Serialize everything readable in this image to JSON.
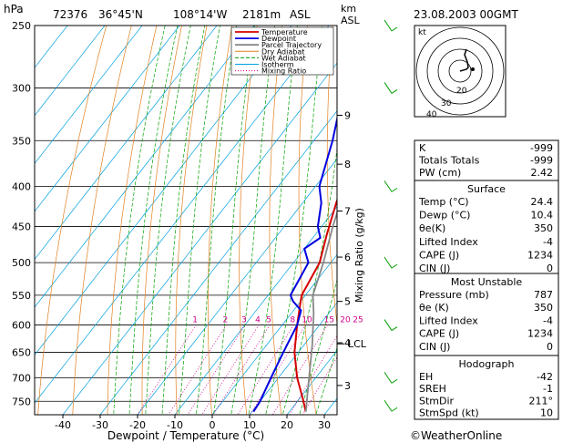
{
  "header": {
    "hpa_unit": "hPa",
    "station": "72376",
    "latitude": "36°45'N",
    "longitude": "108°14'W",
    "elevation": "2181m",
    "elev_ref": "ASL",
    "km_unit": "km",
    "km_unit2": "ASL",
    "datetime": "23.08.2003 00GMT"
  },
  "chart_data": {
    "type": "line",
    "xlabel": "Dewpoint / Temperature (°C)",
    "ylabel": "hPa",
    "y2label": "Mixing Ratio (g/kg)",
    "xlim": [
      -48,
      34
    ],
    "ylim": [
      250,
      780
    ],
    "x_ticks": [
      -40,
      -30,
      -20,
      -10,
      0,
      10,
      20,
      30
    ],
    "pressure_ticks": [
      250,
      300,
      350,
      400,
      450,
      500,
      550,
      600,
      650,
      700,
      750
    ],
    "height_ticks": [
      {
        "km": "3",
        "p": 716
      },
      {
        "km": "4",
        "p": 632
      },
      {
        "km": "5",
        "p": 560
      },
      {
        "km": "6",
        "p": 492
      },
      {
        "km": "7",
        "p": 430
      },
      {
        "km": "8",
        "p": 375
      },
      {
        "km": "9",
        "p": 325
      }
    ],
    "lcl": {
      "label": "LCL",
      "p": 634
    },
    "mixing_ratio_labels": [
      "1",
      "2",
      "3",
      "4",
      "5",
      "8",
      "10",
      "15",
      "20",
      "25"
    ],
    "mixing_ratio_values": [
      1,
      2,
      3,
      4,
      5,
      8,
      10,
      15,
      20,
      25
    ],
    "legend": [
      "Temperature",
      "Dewpoint",
      "Parcel Trajectory",
      "Dry Adiabat",
      "Wet Adiabat",
      "Isotherm",
      "Mixing Ratio"
    ],
    "colors": {
      "temperature": "#d40000",
      "dewpoint": "#0000e0",
      "parcel": "#888888",
      "dry": "#e08020",
      "wet": "#00a000",
      "isotherm": "#00a0e0",
      "mixing": "#d0008c"
    },
    "series": [
      {
        "name": "Temperature",
        "points": [
          [
            24.4,
            773
          ],
          [
            21,
            745
          ],
          [
            15,
            700
          ],
          [
            9,
            650
          ],
          [
            4,
            600
          ],
          [
            0,
            560
          ],
          [
            -1,
            550
          ],
          [
            -3,
            500
          ],
          [
            -7,
            460
          ],
          [
            -11,
            420
          ],
          [
            -13,
            400
          ],
          [
            -19,
            350
          ],
          [
            -27,
            300
          ],
          [
            -36,
            250
          ]
        ]
      },
      {
        "name": "Dewpoint",
        "points": [
          [
            10.4,
            773
          ],
          [
            10,
            750
          ],
          [
            8,
            700
          ],
          [
            6,
            650
          ],
          [
            4,
            600
          ],
          [
            2,
            575
          ],
          [
            -2,
            560
          ],
          [
            -4,
            550
          ],
          [
            -6,
            500
          ],
          [
            -10,
            480
          ],
          [
            -8,
            465
          ],
          [
            -11,
            450
          ],
          [
            -15,
            420
          ],
          [
            -19,
            400
          ],
          [
            -25,
            350
          ],
          [
            -33,
            300
          ],
          [
            -40,
            250
          ]
        ]
      },
      {
        "name": "Parcel Trajectory",
        "points": [
          [
            24.4,
            773
          ],
          [
            12,
            634
          ],
          [
            6,
            580
          ],
          [
            2,
            550
          ],
          [
            -2,
            500
          ],
          [
            -7,
            450
          ],
          [
            -12,
            400
          ],
          [
            -18,
            350
          ],
          [
            -25,
            300
          ],
          [
            -33,
            250
          ]
        ]
      }
    ]
  },
  "hodograph": {
    "label": "kt",
    "ring_labels": [
      "20",
      "30",
      "40"
    ]
  },
  "indices": [
    {
      "label": "K",
      "value": "-999"
    },
    {
      "label": "Totals Totals",
      "value": "-999"
    },
    {
      "label": "PW (cm)",
      "value": "2.42"
    }
  ],
  "surface": {
    "title": "Surface",
    "rows": [
      {
        "label": "Temp (°C)",
        "value": "24.4"
      },
      {
        "label": "Dewp (°C)",
        "value": "10.4"
      },
      {
        "label": "θe(K)",
        "value": "350"
      },
      {
        "label": "Lifted Index",
        "value": "-4"
      },
      {
        "label": "CAPE (J)",
        "value": "1234"
      },
      {
        "label": "CIN (J)",
        "value": "0"
      }
    ]
  },
  "most_unstable": {
    "title": "Most Unstable",
    "rows": [
      {
        "label": "Pressure (mb)",
        "value": "787"
      },
      {
        "label": "θe (K)",
        "value": "350"
      },
      {
        "label": "Lifted Index",
        "value": "-4"
      },
      {
        "label": "CAPE (J)",
        "value": "1234"
      },
      {
        "label": "CIN (J)",
        "value": "0"
      }
    ]
  },
  "hodo_params": {
    "title": "Hodograph",
    "rows": [
      {
        "label": "EH",
        "value": "-42"
      },
      {
        "label": "SREH",
        "value": "-1"
      },
      {
        "label": "StmDir",
        "value": "211°"
      },
      {
        "label": "StmSpd (kt)",
        "value": "10"
      }
    ]
  },
  "footer": {
    "copyright": "©WeatherOnline"
  }
}
